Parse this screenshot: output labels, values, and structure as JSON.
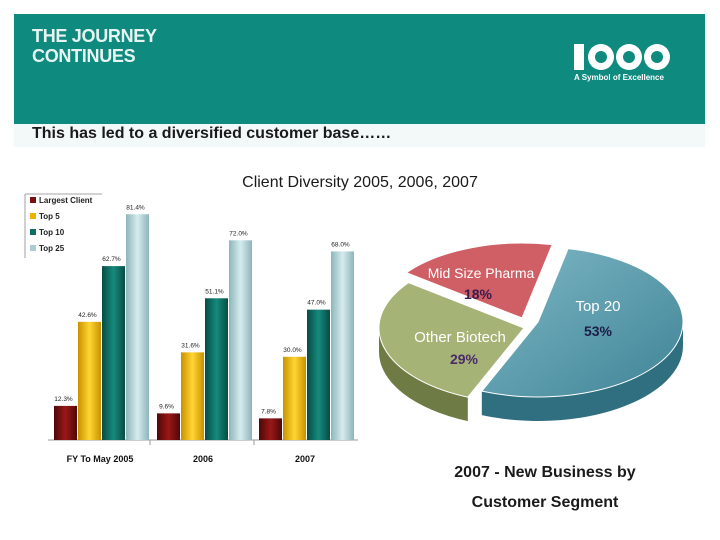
{
  "header": {
    "journey_line1": "THE JOURNEY",
    "journey_line2": "CONTINUES",
    "logo_text": "ICON",
    "logo_tagline": "A Symbol of Excellence",
    "subtitle": "This has led to a diversified customer base……"
  },
  "chart_title": "Client Diversity 2005, 2006, 2007",
  "chart_data": [
    {
      "type": "bar",
      "categories": [
        "FY To May 2005",
        "2006",
        "2007"
      ],
      "series": [
        {
          "name": "Largest Client",
          "values": [
            12.3,
            9.6,
            7.8
          ],
          "labels": [
            "12.3%",
            "9.6%",
            "7.8%"
          ]
        },
        {
          "name": "Top 5",
          "values": [
            42.6,
            31.6,
            30.0
          ],
          "labels": [
            "42.6%",
            "31.6%",
            "30.0%"
          ]
        },
        {
          "name": "Top 10",
          "values": [
            62.7,
            51.1,
            47.0
          ],
          "labels": [
            "62.7%",
            "51.1%",
            "47.0%"
          ]
        },
        {
          "name": "Top 25",
          "values": [
            81.4,
            72.0,
            68.0
          ],
          "labels": [
            "81.4%",
            "72.0%",
            "68.0%"
          ]
        }
      ],
      "colors": [
        "#7a1010",
        "#e8b400",
        "#0f6e64",
        "#a9cdd2"
      ],
      "legend_position": "top-left",
      "ylim": [
        0,
        90
      ]
    },
    {
      "type": "pie",
      "slices": [
        {
          "name": "Top 20",
          "value": 53,
          "label": "53%",
          "color": "#5b9eae"
        },
        {
          "name": "Other Biotech",
          "value": 29,
          "label": "29%",
          "color": "#9eac6a"
        },
        {
          "name": "Mid Size Pharma",
          "value": 18,
          "label": "18%",
          "color": "#c9565c"
        }
      ],
      "caption_line1": "2007 - New Business by",
      "caption_line2": "Customer Segment"
    }
  ]
}
